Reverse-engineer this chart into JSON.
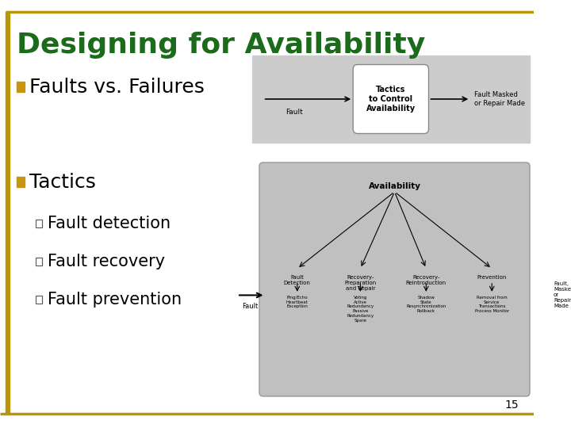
{
  "title": "Designing for Availability",
  "title_color": "#1a6b1a",
  "title_fontsize": 26,
  "background_color": "#ffffff",
  "border_color": "#b8960c",
  "left_bar_color": "#b8960c",
  "bullet1_text": "Faults vs. Failures",
  "bullet2_text": "Tactics",
  "sub_bullets": [
    "Fault detection",
    "Fault recovery",
    "Fault prevention"
  ],
  "bullet_color": "#c8960c",
  "bullet_fontsize": 18,
  "sub_bullet_fontsize": 15,
  "page_number": "15",
  "diagram_bg": "#cccccc",
  "diagram2_bg": "#c0c0c0"
}
